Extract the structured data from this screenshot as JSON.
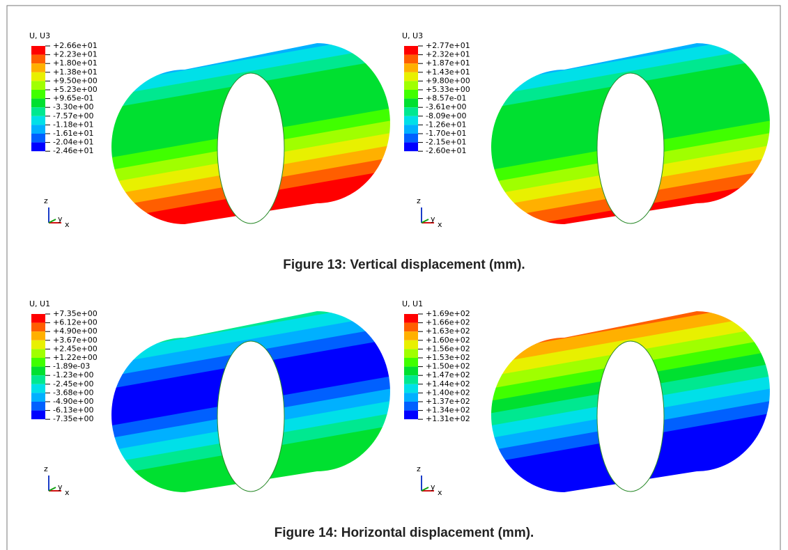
{
  "figures": [
    {
      "caption": "Figure 13: Vertical displacement (mm).",
      "panels": [
        {
          "legend_title": "U, U3",
          "legend_values": [
            "+2.66e+01",
            "+2.23e+01",
            "+1.80e+01",
            "+1.38e+01",
            "+9.50e+00",
            "+5.23e+00",
            "+9.65e-01",
            "-3.30e+00",
            "-7.57e+00",
            "-1.18e+01",
            "-1.61e+01",
            "-2.04e+01",
            "-2.46e+01"
          ],
          "triad": {
            "z": "z",
            "y": "y",
            "x": "x"
          }
        },
        {
          "legend_title": "U, U3",
          "legend_values": [
            "+2.77e+01",
            "+2.32e+01",
            "+1.87e+01",
            "+1.43e+01",
            "+9.80e+00",
            "+5.33e+00",
            "+8.57e-01",
            "-3.61e+00",
            "-8.09e+00",
            "-1.26e+01",
            "-1.70e+01",
            "-2.15e+01",
            "-2.60e+01"
          ],
          "triad": {
            "z": "z",
            "y": "y",
            "x": "x"
          }
        }
      ]
    },
    {
      "caption": "Figure 14: Horizontal displacement (mm).",
      "panels": [
        {
          "legend_title": "U, U1",
          "legend_values": [
            "+7.35e+00",
            "+6.12e+00",
            "+4.90e+00",
            "+3.67e+00",
            "+2.45e+00",
            "+1.22e+00",
            "-1.89e-03",
            "-1.23e+00",
            "-2.45e+00",
            "-3.68e+00",
            "-4.90e+00",
            "-6.13e+00",
            "-7.35e+00"
          ],
          "triad": {
            "z": "z",
            "y": "y",
            "x": "x"
          }
        },
        {
          "legend_title": "U, U1",
          "legend_values": [
            "+1.69e+02",
            "+1.66e+02",
            "+1.63e+02",
            "+1.60e+02",
            "+1.56e+02",
            "+1.53e+02",
            "+1.50e+02",
            "+1.47e+02",
            "+1.44e+02",
            "+1.40e+02",
            "+1.37e+02",
            "+1.34e+02",
            "+1.31e+02"
          ],
          "triad": {
            "z": "z",
            "y": "y",
            "x": "x"
          }
        }
      ]
    }
  ]
}
